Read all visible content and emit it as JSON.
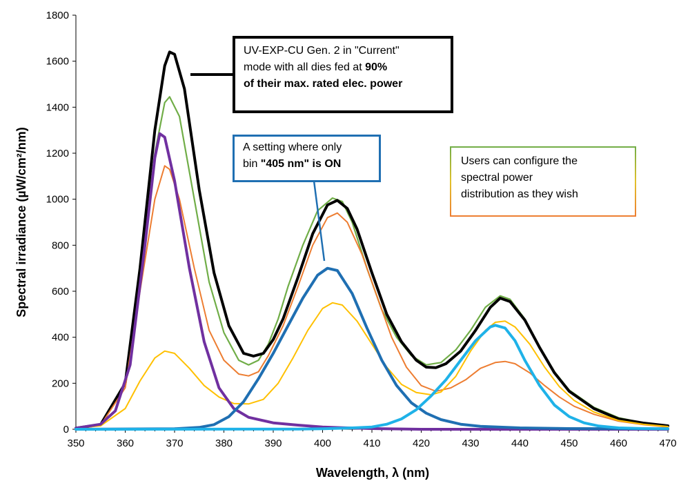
{
  "chart_data": {
    "type": "line",
    "xlabel": "Wavelength, λ (nm)",
    "ylabel": "Spectral irradiance (µW/cm²/nm)",
    "xlim": [
      350,
      470
    ],
    "ylim": [
      0,
      1800
    ],
    "x_ticks": [
      "350",
      "360",
      "370",
      "380",
      "390",
      "400",
      "410",
      "420",
      "430",
      "440",
      "450",
      "460",
      "470"
    ],
    "y_ticks": [
      "0",
      "200",
      "400",
      "600",
      "800",
      "1000",
      "1200",
      "1400",
      "1600",
      "1800"
    ],
    "grid": false,
    "legend": "none",
    "series": [
      {
        "color": "#70ad47",
        "width": 2.2,
        "points": [
          [
            350,
            5
          ],
          [
            355,
            20
          ],
          [
            360,
            200
          ],
          [
            363,
            680
          ],
          [
            366,
            1200
          ],
          [
            368,
            1420
          ],
          [
            369,
            1445
          ],
          [
            371,
            1360
          ],
          [
            374,
            1000
          ],
          [
            377,
            640
          ],
          [
            380,
            420
          ],
          [
            383,
            300
          ],
          [
            385,
            280
          ],
          [
            387,
            300
          ],
          [
            389,
            370
          ],
          [
            391,
            480
          ],
          [
            393,
            620
          ],
          [
            396,
            800
          ],
          [
            399,
            950
          ],
          [
            402,
            1005
          ],
          [
            404,
            990
          ],
          [
            406,
            900
          ],
          [
            409,
            700
          ],
          [
            412,
            520
          ],
          [
            415,
            400
          ],
          [
            418,
            320
          ],
          [
            421,
            280
          ],
          [
            424,
            290
          ],
          [
            427,
            345
          ],
          [
            430,
            430
          ],
          [
            433,
            530
          ],
          [
            436,
            580
          ],
          [
            438,
            565
          ],
          [
            441,
            480
          ],
          [
            444,
            360
          ],
          [
            447,
            250
          ],
          [
            450,
            170
          ],
          [
            455,
            95
          ],
          [
            460,
            50
          ],
          [
            465,
            28
          ],
          [
            470,
            15
          ]
        ]
      },
      {
        "color": "#000000",
        "width": 4,
        "points": [
          [
            350,
            5
          ],
          [
            355,
            20
          ],
          [
            360,
            200
          ],
          [
            363,
            700
          ],
          [
            366,
            1300
          ],
          [
            368,
            1580
          ],
          [
            369,
            1640
          ],
          [
            370,
            1630
          ],
          [
            372,
            1480
          ],
          [
            375,
            1040
          ],
          [
            378,
            680
          ],
          [
            381,
            450
          ],
          [
            384,
            330
          ],
          [
            386,
            318
          ],
          [
            388,
            330
          ],
          [
            390,
            390
          ],
          [
            392,
            480
          ],
          [
            395,
            660
          ],
          [
            398,
            850
          ],
          [
            401,
            975
          ],
          [
            403,
            995
          ],
          [
            405,
            960
          ],
          [
            407,
            870
          ],
          [
            410,
            680
          ],
          [
            413,
            500
          ],
          [
            416,
            380
          ],
          [
            419,
            300
          ],
          [
            421,
            270
          ],
          [
            423,
            268
          ],
          [
            425,
            285
          ],
          [
            428,
            340
          ],
          [
            431,
            430
          ],
          [
            434,
            530
          ],
          [
            436,
            570
          ],
          [
            438,
            555
          ],
          [
            441,
            475
          ],
          [
            444,
            355
          ],
          [
            447,
            245
          ],
          [
            450,
            165
          ],
          [
            455,
            90
          ],
          [
            460,
            45
          ],
          [
            465,
            27
          ],
          [
            470,
            15
          ]
        ]
      },
      {
        "color": "#ed7d31",
        "width": 2,
        "points": [
          [
            350,
            5
          ],
          [
            355,
            18
          ],
          [
            360,
            180
          ],
          [
            363,
            600
          ],
          [
            366,
            1000
          ],
          [
            368,
            1145
          ],
          [
            369,
            1130
          ],
          [
            371,
            1000
          ],
          [
            374,
            700
          ],
          [
            377,
            430
          ],
          [
            380,
            300
          ],
          [
            383,
            240
          ],
          [
            385,
            232
          ],
          [
            387,
            250
          ],
          [
            389,
            320
          ],
          [
            392,
            450
          ],
          [
            395,
            620
          ],
          [
            398,
            800
          ],
          [
            401,
            920
          ],
          [
            403,
            940
          ],
          [
            405,
            900
          ],
          [
            408,
            760
          ],
          [
            411,
            580
          ],
          [
            414,
            400
          ],
          [
            417,
            270
          ],
          [
            420,
            190
          ],
          [
            423,
            165
          ],
          [
            426,
            180
          ],
          [
            429,
            215
          ],
          [
            432,
            265
          ],
          [
            435,
            290
          ],
          [
            437,
            295
          ],
          [
            439,
            285
          ],
          [
            442,
            245
          ],
          [
            445,
            190
          ],
          [
            448,
            140
          ],
          [
            451,
            100
          ],
          [
            455,
            65
          ],
          [
            460,
            35
          ],
          [
            465,
            20
          ],
          [
            470,
            10
          ]
        ]
      },
      {
        "color": "#ffc000",
        "width": 2,
        "points": [
          [
            350,
            5
          ],
          [
            355,
            15
          ],
          [
            360,
            90
          ],
          [
            363,
            210
          ],
          [
            366,
            310
          ],
          [
            368,
            340
          ],
          [
            370,
            330
          ],
          [
            373,
            265
          ],
          [
            376,
            190
          ],
          [
            379,
            140
          ],
          [
            382,
            112
          ],
          [
            385,
            110
          ],
          [
            388,
            130
          ],
          [
            391,
            200
          ],
          [
            394,
            310
          ],
          [
            397,
            430
          ],
          [
            400,
            525
          ],
          [
            402,
            550
          ],
          [
            404,
            540
          ],
          [
            407,
            470
          ],
          [
            410,
            370
          ],
          [
            413,
            270
          ],
          [
            416,
            195
          ],
          [
            419,
            160
          ],
          [
            422,
            150
          ],
          [
            424,
            162
          ],
          [
            427,
            230
          ],
          [
            430,
            340
          ],
          [
            433,
            430
          ],
          [
            435,
            465
          ],
          [
            437,
            470
          ],
          [
            439,
            445
          ],
          [
            442,
            370
          ],
          [
            445,
            270
          ],
          [
            448,
            185
          ],
          [
            451,
            125
          ],
          [
            455,
            75
          ],
          [
            460,
            38
          ],
          [
            465,
            22
          ],
          [
            470,
            12
          ]
        ]
      },
      {
        "color": "#7030a0",
        "width": 4,
        "points": [
          [
            350,
            5
          ],
          [
            355,
            22
          ],
          [
            358,
            80
          ],
          [
            361,
            280
          ],
          [
            364,
            800
          ],
          [
            366,
            1180
          ],
          [
            367,
            1285
          ],
          [
            368,
            1270
          ],
          [
            370,
            1080
          ],
          [
            373,
            700
          ],
          [
            376,
            380
          ],
          [
            379,
            180
          ],
          [
            382,
            90
          ],
          [
            385,
            52
          ],
          [
            390,
            28
          ],
          [
            395,
            18
          ],
          [
            400,
            10
          ],
          [
            405,
            6
          ],
          [
            410,
            3
          ],
          [
            420,
            0
          ],
          [
            470,
            0
          ]
        ]
      },
      {
        "color": "#1f6fb2",
        "width": 4,
        "points": [
          [
            350,
            0
          ],
          [
            370,
            2
          ],
          [
            375,
            8
          ],
          [
            378,
            20
          ],
          [
            381,
            55
          ],
          [
            384,
            120
          ],
          [
            387,
            220
          ],
          [
            390,
            330
          ],
          [
            393,
            450
          ],
          [
            396,
            570
          ],
          [
            399,
            670
          ],
          [
            401,
            700
          ],
          [
            403,
            690
          ],
          [
            406,
            590
          ],
          [
            409,
            440
          ],
          [
            412,
            300
          ],
          [
            415,
            190
          ],
          [
            418,
            115
          ],
          [
            421,
            70
          ],
          [
            424,
            42
          ],
          [
            428,
            22
          ],
          [
            432,
            13
          ],
          [
            440,
            6
          ],
          [
            450,
            3
          ],
          [
            470,
            2
          ]
        ]
      },
      {
        "color": "#1fb2e8",
        "width": 4,
        "points": [
          [
            350,
            0
          ],
          [
            395,
            1
          ],
          [
            400,
            2
          ],
          [
            405,
            5
          ],
          [
            410,
            10
          ],
          [
            413,
            22
          ],
          [
            416,
            45
          ],
          [
            419,
            85
          ],
          [
            422,
            145
          ],
          [
            425,
            215
          ],
          [
            428,
            300
          ],
          [
            431,
            385
          ],
          [
            434,
            445
          ],
          [
            435,
            452
          ],
          [
            437,
            440
          ],
          [
            439,
            385
          ],
          [
            441,
            300
          ],
          [
            444,
            190
          ],
          [
            447,
            105
          ],
          [
            450,
            55
          ],
          [
            453,
            28
          ],
          [
            456,
            14
          ],
          [
            460,
            6
          ],
          [
            465,
            3
          ],
          [
            470,
            2
          ]
        ]
      }
    ]
  },
  "annotations": {
    "current": {
      "line1": "UV-EXP-CU Gen. 2 in \"Current\"",
      "line2a": "mode with all dies fed at ",
      "line2b": "90%",
      "line3": "of their max. rated elec. power"
    },
    "bin405": {
      "line1": "A setting where only",
      "line2a": "bin ",
      "line2b": "\"405 nm\" is ON"
    },
    "users": {
      "line1": "Users can configure the",
      "line2": "spectral power",
      "line3": "distribution as they wish"
    }
  },
  "colors": {
    "axis": "#000000",
    "callout_current_border": "#000000",
    "callout_405_border": "#1f6fb2"
  }
}
